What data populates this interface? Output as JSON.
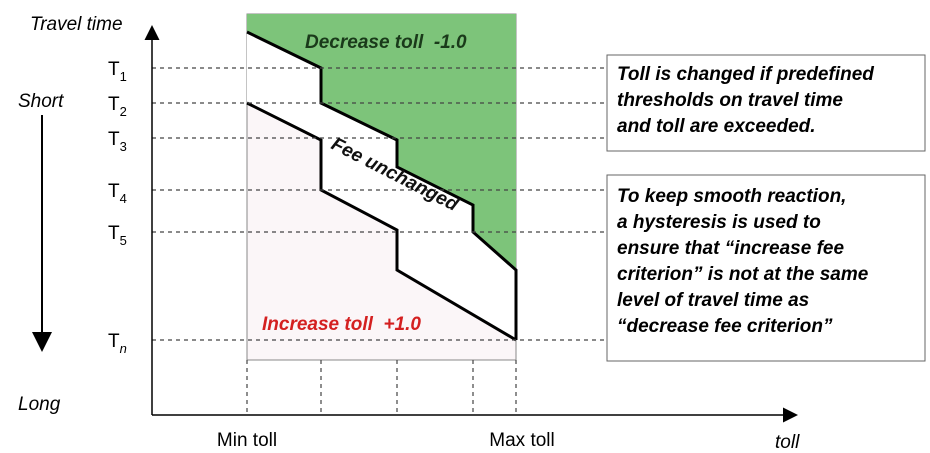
{
  "axis": {
    "y_label": "Travel time",
    "short": "Short",
    "long": "Long",
    "x_label": "toll",
    "min_toll": "Min toll",
    "max_toll": "Max toll"
  },
  "thresholds": [
    {
      "main": "T",
      "sub": "1"
    },
    {
      "main": "T",
      "sub": "2"
    },
    {
      "main": "T",
      "sub": "3"
    },
    {
      "main": "T",
      "sub": "4"
    },
    {
      "main": "T",
      "sub": "5"
    },
    {
      "main": "T",
      "sub": "n"
    }
  ],
  "regions": {
    "decrease": "Decrease toll  -1.0",
    "unchanged": "Fee unchanged",
    "increase": "Increase toll  +1.0"
  },
  "notes": [
    {
      "lines": [
        "Toll is changed if predefined",
        "thresholds on travel time",
        "and toll are exceeded."
      ]
    },
    {
      "lines": [
        "To keep smooth reaction,",
        "a hysteresis is used  to",
        "ensure that “increase fee",
        "criterion” is not at the same",
        "level of travel time as",
        "“decrease fee criterion”"
      ]
    }
  ]
}
